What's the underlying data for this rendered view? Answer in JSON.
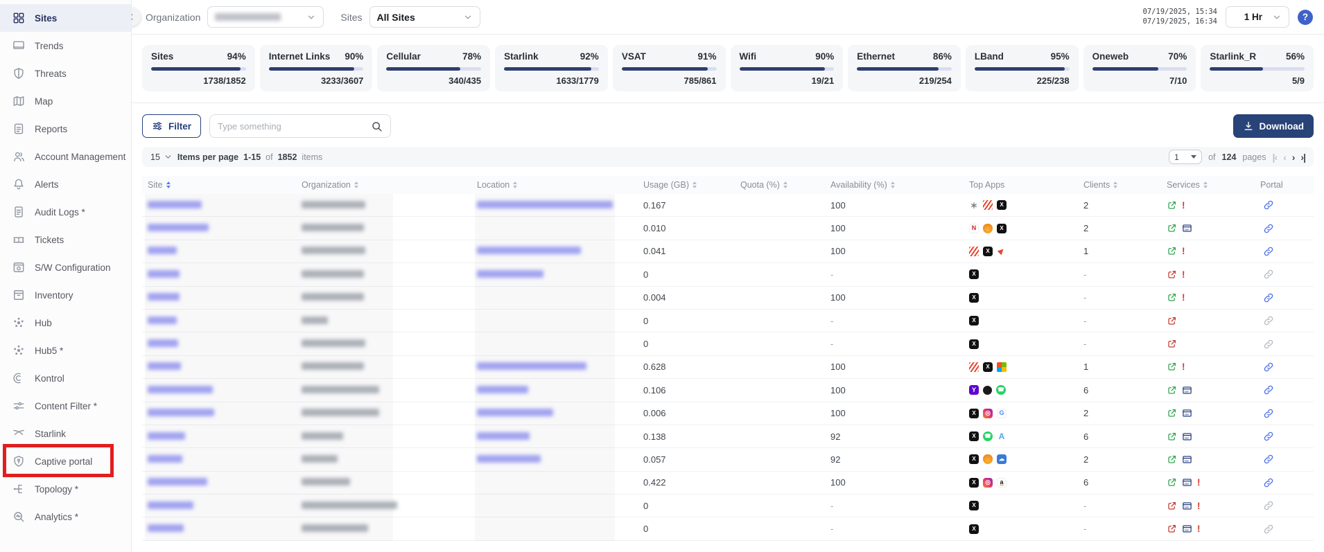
{
  "topbar": {
    "organization_label": "Organization",
    "sites_label": "Sites",
    "sites_value": "All Sites",
    "time_from": "07/19/2025, 15:34",
    "time_to": "07/19/2025, 16:34",
    "range_value": "1 Hr",
    "help_label": "?"
  },
  "sidebar": {
    "items": [
      {
        "label": "Sites",
        "icon": "sites-grid-icon",
        "active": true
      },
      {
        "label": "Trends",
        "icon": "trends-icon"
      },
      {
        "label": "Threats",
        "icon": "shield-icon"
      },
      {
        "label": "Map",
        "icon": "map-icon"
      },
      {
        "label": "Reports",
        "icon": "reports-icon"
      },
      {
        "label": "Account Management",
        "icon": "users-icon"
      },
      {
        "label": "Alerts",
        "icon": "bell-icon"
      },
      {
        "label": "Audit Logs *",
        "icon": "document-icon"
      },
      {
        "label": "Tickets",
        "icon": "ticket-icon"
      },
      {
        "label": "S/W Configuration",
        "icon": "window-gear-icon"
      },
      {
        "label": "Inventory",
        "icon": "box-icon"
      },
      {
        "label": "Hub",
        "icon": "hub-icon"
      },
      {
        "label": "Hub5 *",
        "icon": "hub-icon"
      },
      {
        "label": "Kontrol",
        "icon": "kontrol-icon"
      },
      {
        "label": "Content Filter *",
        "icon": "sliders-dots-icon"
      },
      {
        "label": "Starlink",
        "icon": "starlink-icon"
      },
      {
        "label": "Captive portal",
        "icon": "shield-key-icon",
        "highlighted": true
      },
      {
        "label": "Topology *",
        "icon": "topology-icon"
      },
      {
        "label": "Analytics *",
        "icon": "analytics-icon"
      }
    ]
  },
  "status_cards": [
    {
      "label": "Sites",
      "pct": 94,
      "count": "1738/1852"
    },
    {
      "label": "Internet Links",
      "pct": 90,
      "count": "3233/3607"
    },
    {
      "label": "Cellular",
      "pct": 78,
      "count": "340/435"
    },
    {
      "label": "Starlink",
      "pct": 92,
      "count": "1633/1779"
    },
    {
      "label": "VSAT",
      "pct": 91,
      "count": "785/861"
    },
    {
      "label": "Wifi",
      "pct": 90,
      "count": "19/21"
    },
    {
      "label": "Ethernet",
      "pct": 86,
      "count": "219/254"
    },
    {
      "label": "LBand",
      "pct": 95,
      "count": "225/238"
    },
    {
      "label": "Oneweb",
      "pct": 70,
      "count": "7/10"
    },
    {
      "label": "Starlink_R",
      "pct": 56,
      "count": "5/9"
    }
  ],
  "toolbar": {
    "filter_label": "Filter",
    "search_placeholder": "Type something",
    "download_label": "Download"
  },
  "pagination": {
    "page_size": "15",
    "items_per_page_label": "Items per page",
    "range": "1-15",
    "of_label": "of",
    "total_items": "1852",
    "items_label": "items",
    "page": "1",
    "pages_count": "124",
    "pages_label": "pages"
  },
  "table": {
    "columns": [
      {
        "label": "Site",
        "sortable": true,
        "sorted": true
      },
      {
        "label": "Organization",
        "sortable": true
      },
      {
        "label": "Location",
        "sortable": true
      },
      {
        "label": "Usage (GB)",
        "sortable": true
      },
      {
        "label": "Quota (%)",
        "sortable": true
      },
      {
        "label": "Availability (%)",
        "sortable": true
      },
      {
        "label": "Top Apps",
        "sortable": false
      },
      {
        "label": "Clients",
        "sortable": true
      },
      {
        "label": "Services",
        "sortable": true
      },
      {
        "label": "Portal",
        "sortable": false
      }
    ],
    "rows": [
      {
        "site_w": 78,
        "org_w": 92,
        "loc_w": 196,
        "usage": "0.167",
        "quota": "",
        "availability": "100",
        "apps": [
          "fan",
          "stripes",
          "x"
        ],
        "clients": "2",
        "services": [
          "open:green",
          "excl"
        ],
        "portal": "blue"
      },
      {
        "site_w": 88,
        "org_w": 90,
        "loc_w": 0,
        "usage": "0.010",
        "quota": "",
        "availability": "100",
        "apps": [
          "netflix",
          "flame",
          "x"
        ],
        "clients": "2",
        "services": [
          "open:green",
          "csv"
        ],
        "portal": "blue"
      },
      {
        "site_w": 42,
        "org_w": 92,
        "loc_w": 150,
        "usage": "0.041",
        "quota": "",
        "availability": "100",
        "apps": [
          "stripes",
          "x",
          "rocket"
        ],
        "clients": "1",
        "services": [
          "open:green",
          "excl"
        ],
        "portal": "blue"
      },
      {
        "site_w": 46,
        "org_w": 90,
        "loc_w": 96,
        "usage": "0",
        "quota": "",
        "availability": "-",
        "apps": [
          "x"
        ],
        "clients": "-",
        "services": [
          "open:red",
          "excl"
        ],
        "portal": "gray"
      },
      {
        "site_w": 46,
        "org_w": 90,
        "loc_w": 0,
        "usage": "0.004",
        "quota": "",
        "availability": "100",
        "apps": [
          "x"
        ],
        "clients": "-",
        "services": [
          "open:green",
          "excl"
        ],
        "portal": "blue"
      },
      {
        "site_w": 42,
        "org_w": 38,
        "loc_w": 0,
        "usage": "0",
        "quota": "",
        "availability": "-",
        "apps": [
          "x"
        ],
        "clients": "-",
        "services": [
          "open:red"
        ],
        "portal": "gray"
      },
      {
        "site_w": 44,
        "org_w": 92,
        "loc_w": 0,
        "usage": "0",
        "quota": "",
        "availability": "-",
        "apps": [
          "x"
        ],
        "clients": "-",
        "services": [
          "open:red"
        ],
        "portal": "gray"
      },
      {
        "site_w": 48,
        "org_w": 90,
        "loc_w": 158,
        "usage": "0.628",
        "quota": "",
        "availability": "100",
        "apps": [
          "stripes",
          "x",
          "microsoft"
        ],
        "clients": "1",
        "services": [
          "open:green",
          "excl"
        ],
        "portal": "blue"
      },
      {
        "site_w": 94,
        "org_w": 112,
        "loc_w": 74,
        "usage": "0.106",
        "quota": "",
        "availability": "100",
        "apps": [
          "yahoo",
          "apple",
          "whatsapp"
        ],
        "clients": "6",
        "services": [
          "open:green",
          "csv"
        ],
        "portal": "blue"
      },
      {
        "site_w": 96,
        "org_w": 112,
        "loc_w": 110,
        "usage": "0.006",
        "quota": "",
        "availability": "100",
        "apps": [
          "x",
          "instagram",
          "google"
        ],
        "clients": "2",
        "services": [
          "open:green",
          "csv"
        ],
        "portal": "blue"
      },
      {
        "site_w": 54,
        "org_w": 60,
        "loc_w": 76,
        "usage": "0.138",
        "quota": "",
        "availability": "92",
        "apps": [
          "x",
          "whatsapp",
          "app-a"
        ],
        "clients": "6",
        "services": [
          "open:green",
          "csv"
        ],
        "portal": "blue"
      },
      {
        "site_w": 50,
        "org_w": 52,
        "loc_w": 92,
        "usage": "0.057",
        "quota": "",
        "availability": "92",
        "apps": [
          "x",
          "flame",
          "cloud"
        ],
        "clients": "2",
        "services": [
          "open:green",
          "csv"
        ],
        "portal": "blue"
      },
      {
        "site_w": 86,
        "org_w": 70,
        "loc_w": 0,
        "usage": "0.422",
        "quota": "",
        "availability": "100",
        "apps": [
          "x",
          "instagram",
          "amazon"
        ],
        "clients": "6",
        "services": [
          "open:green",
          "csv",
          "excl"
        ],
        "portal": "blue"
      },
      {
        "site_w": 66,
        "org_w": 138,
        "loc_w": 0,
        "usage": "0",
        "quota": "",
        "availability": "-",
        "apps": [
          "x"
        ],
        "clients": "-",
        "services": [
          "open:red",
          "csv",
          "excl"
        ],
        "portal": "gray"
      },
      {
        "site_w": 52,
        "org_w": 96,
        "loc_w": 0,
        "usage": "0",
        "quota": "",
        "availability": "-",
        "apps": [
          "x"
        ],
        "clients": "-",
        "services": [
          "open:red",
          "csv",
          "excl"
        ],
        "portal": "gray"
      }
    ]
  },
  "colors": {
    "primary_navy": "#274378",
    "progress_fill": "#2e3f70",
    "progress_track": "#d9ddf0",
    "active_item_bg": "#edeff7",
    "annotation_red": "#e11f1f",
    "link_blue": "#4c6fe8",
    "service_green": "#2fa34f",
    "service_red": "#c23b2e",
    "help_blue": "#3f62c9"
  }
}
